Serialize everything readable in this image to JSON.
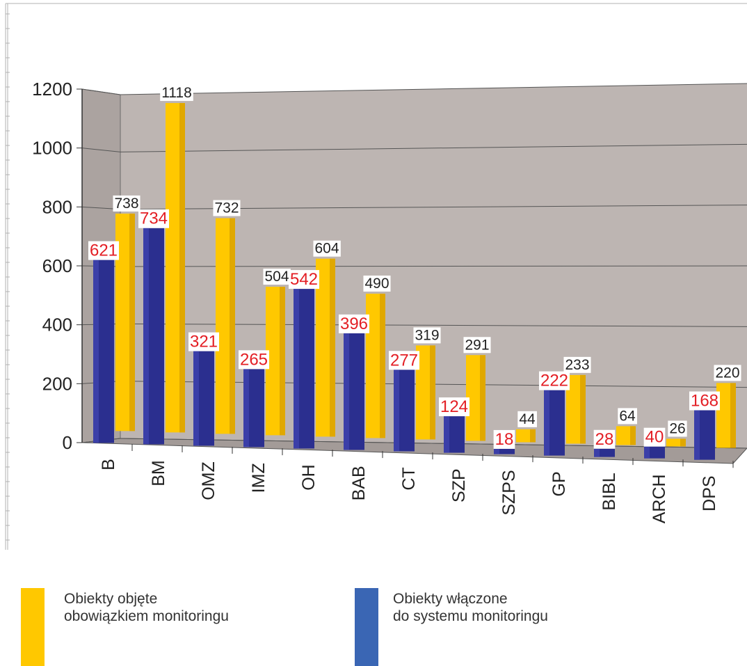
{
  "chart_data": {
    "type": "bar",
    "categories": [
      "B",
      "BM",
      "OMZ",
      "IMZ",
      "OH",
      "BAB",
      "CT",
      "SZP",
      "SZPS",
      "GP",
      "BIBL",
      "ARCH",
      "DPS"
    ],
    "series": [
      {
        "name": "Obiekty włączone do systemu monitoringu",
        "values": [
          621,
          734,
          321,
          265,
          542,
          396,
          277,
          124,
          18,
          222,
          28,
          40,
          168
        ]
      },
      {
        "name": "Obiekty objęte obowiązkiem monitoringu",
        "values": [
          738,
          1118,
          732,
          504,
          604,
          490,
          319,
          291,
          44,
          233,
          64,
          26,
          220
        ]
      }
    ],
    "y_ticks": [
      "0",
      "200",
      "400",
      "600",
      "800",
      "1000",
      "1200"
    ],
    "ylim": [
      0,
      1200
    ],
    "grid": true,
    "legend_position": "bottom"
  },
  "legend": {
    "planned": {
      "line1": "Obiekty objęte",
      "line2": "obowiązkiem monitoringu"
    },
    "connected": {
      "line1": "Obiekty włączone",
      "line2": "do systemu monitoringu"
    }
  },
  "colors": {
    "planned": "#FFC800",
    "connected": "#2B2F8F",
    "connected_legend": "#3A66B4",
    "plot_bg": "#BDB5B2",
    "connected_label": "#E31E24",
    "planned_label": "#222222"
  }
}
